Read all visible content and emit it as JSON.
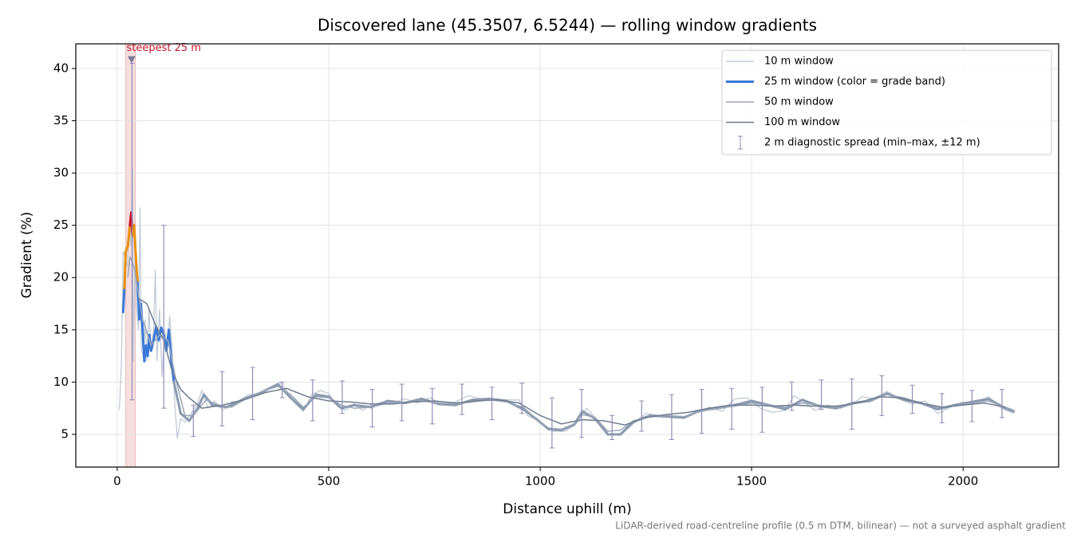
{
  "chart_data": {
    "type": "line",
    "title": "Discovered lane (45.3507, 6.5244) — rolling window gradients",
    "x_label": "Distance uphill (m)",
    "y_label": "Gradient (%)",
    "footnote": "LiDAR-derived road-centreline profile (0.5 m DTM, bilinear) — not a surveyed asphalt gradient",
    "xlim": [
      -98,
      2226
    ],
    "ylim": [
      1.87,
      42.36
    ],
    "xticks": [
      0,
      500,
      1000,
      1500,
      2000
    ],
    "yticks": [
      5,
      10,
      15,
      20,
      25,
      30,
      35,
      40
    ],
    "grid": true,
    "legend": "upper right",
    "highlight": {
      "x": [
        20,
        43
      ],
      "label": "steepest 25 m",
      "color": "#e8a0a0",
      "peak": {
        "x": 34,
        "y": 40.8
      }
    },
    "series": [
      {
        "name": "10 m window",
        "color": "#c0cad6",
        "x": [
          5,
          10,
          14,
          18,
          24,
          28,
          32,
          36,
          38,
          42,
          46,
          50,
          54,
          57,
          62,
          66,
          70,
          75,
          80,
          86,
          90,
          94,
          100,
          106,
          112,
          118,
          124,
          130,
          136,
          142,
          150,
          160,
          175,
          190,
          200,
          215,
          230,
          250,
          270,
          290,
          310,
          330,
          350,
          370,
          385,
          400,
          420,
          440,
          460,
          480,
          500,
          520,
          540,
          560,
          580,
          600,
          620,
          650,
          680,
          710,
          740,
          770,
          800,
          830,
          860,
          890,
          920,
          950,
          970,
          1000,
          1030,
          1060,
          1090,
          1110,
          1130,
          1160,
          1190,
          1220,
          1250,
          1280,
          1310,
          1340,
          1370,
          1400,
          1430,
          1460,
          1490,
          1520,
          1550,
          1580,
          1600,
          1620,
          1650,
          1680,
          1710,
          1740,
          1760,
          1790,
          1820,
          1850,
          1880,
          1910,
          1940,
          1970,
          2000,
          2030,
          2060,
          2090,
          2120
        ],
        "values": [
          7.3,
          12,
          22.5,
          22,
          21,
          25,
          23,
          30.5,
          12,
          22,
          17,
          15,
          26.7,
          13,
          12.5,
          16,
          12,
          17,
          13,
          15,
          20.7,
          12,
          17,
          10.5,
          15,
          13,
          16.3,
          13,
          8,
          4.6,
          6.5,
          6.2,
          7,
          8,
          9.2,
          7.5,
          8.2,
          7.3,
          8.1,
          8.2,
          8.8,
          8.8,
          9.2,
          9.6,
          10,
          9.2,
          8,
          7.2,
          8.8,
          9.2,
          8.9,
          7.7,
          7.3,
          7.9,
          7.3,
          7.8,
          8.0,
          8.0,
          8.4,
          8.0,
          8.5,
          7.8,
          8.1,
          8.7,
          8.4,
          8.4,
          8.3,
          8.3,
          6.8,
          6.2,
          5.3,
          5.3,
          6.2,
          7.5,
          6.6,
          5.0,
          4.9,
          6.0,
          7.0,
          6.8,
          6.7,
          6.7,
          7.1,
          7.6,
          7.2,
          8.4,
          8.5,
          7.5,
          7.1,
          7.3,
          8.7,
          8.2,
          7.3,
          7.8,
          7.5,
          7.9,
          8.6,
          8.4,
          9.1,
          8.4,
          7.9,
          8.2,
          7.0,
          7.6,
          8.1,
          7.9,
          8.6,
          7.5,
          7.0
        ]
      },
      {
        "name": "25 m window (color = grade band)",
        "color": "#3a78d8",
        "thresholds": [
          10,
          20,
          25
        ],
        "band_colors": [
          "#8a99ae",
          "#3a78d8",
          "#e8900c",
          "#c8102e"
        ],
        "x": [
          14,
          17,
          20,
          25,
          30,
          33,
          36,
          40,
          44,
          48,
          52,
          56,
          60,
          64,
          68,
          72,
          76,
          80,
          86,
          92,
          98,
          104,
          110,
          116,
          122,
          128,
          134,
          150,
          170,
          190,
          205,
          225,
          260,
          300,
          340,
          380,
          410,
          440,
          470,
          500,
          530,
          560,
          600,
          640,
          680,
          720,
          760,
          800,
          840,
          880,
          920,
          960,
          990,
          1020,
          1050,
          1080,
          1100,
          1130,
          1160,
          1190,
          1220,
          1260,
          1300,
          1340,
          1380,
          1420,
          1460,
          1500,
          1540,
          1580,
          1620,
          1660,
          1700,
          1740,
          1780,
          1820,
          1860,
          1900,
          1940,
          1980,
          2020,
          2060,
          2100,
          2120
        ],
        "values": [
          16.7,
          19,
          22.5,
          23,
          25,
          26.2,
          24,
          25,
          22,
          19.5,
          16,
          17.5,
          15,
          12,
          13.5,
          12.5,
          14.5,
          13,
          14,
          15.3,
          14,
          15.2,
          14.5,
          13,
          15,
          12,
          10,
          7,
          6.3,
          7.5,
          8.8,
          7.8,
          7.6,
          8.4,
          9,
          9.8,
          8.5,
          7.4,
          8.8,
          8.6,
          7.5,
          7.8,
          7.6,
          8.2,
          8.0,
          8.4,
          7.9,
          7.8,
          8.3,
          8.4,
          8.2,
          7.4,
          6.5,
          5.5,
          5.4,
          5.9,
          7.2,
          6.5,
          5.0,
          5.0,
          6.2,
          6.8,
          6.7,
          6.6,
          7.3,
          7.5,
          7.8,
          8.2,
          7.8,
          7.4,
          8.3,
          7.7,
          7.5,
          8.0,
          8.2,
          8.9,
          8.3,
          8.0,
          7.4,
          7.8,
          8.1,
          8.4,
          7.5,
          7.2
        ]
      },
      {
        "name": "50 m window",
        "color": "#9aa7b8",
        "x": [
          25,
          30,
          40,
          60,
          80,
          100,
          120,
          140,
          160,
          180,
          210,
          240,
          270,
          300,
          350,
          380,
          410,
          440,
          470,
          500,
          530,
          560,
          600,
          640,
          680,
          720,
          760,
          800,
          840,
          880,
          920,
          960,
          990,
          1020,
          1050,
          1080,
          1100,
          1130,
          1160,
          1190,
          1220,
          1260,
          1300,
          1340,
          1380,
          1420,
          1460,
          1500,
          1540,
          1580,
          1620,
          1660,
          1700,
          1740,
          1780,
          1820,
          1860,
          1900,
          1940,
          1980,
          2020,
          2060,
          2100,
          2120
        ],
        "values": [
          20,
          22,
          21,
          16,
          13.5,
          14.5,
          14,
          10,
          6.8,
          6.8,
          8.3,
          7.8,
          7.6,
          8.3,
          9.2,
          9.6,
          8.8,
          7.6,
          8.6,
          8.5,
          7.8,
          7.5,
          7.6,
          8.0,
          8.1,
          8.2,
          8.0,
          7.9,
          8.1,
          8.3,
          8.1,
          7.6,
          6.5,
          5.6,
          5.5,
          6.0,
          6.9,
          6.6,
          5.3,
          5.4,
          6.3,
          6.7,
          6.8,
          6.7,
          7.2,
          7.5,
          7.7,
          8.0,
          7.8,
          7.6,
          8.0,
          7.8,
          7.6,
          7.9,
          8.3,
          8.8,
          8.5,
          8.0,
          7.6,
          7.7,
          8.0,
          8.2,
          7.6,
          7.3
        ]
      },
      {
        "name": "100 m window",
        "color": "#6f7d8f",
        "x": [
          50,
          70,
          90,
          110,
          130,
          150,
          170,
          200,
          250,
          300,
          350,
          400,
          450,
          500,
          550,
          600,
          650,
          700,
          750,
          800,
          850,
          900,
          950,
          1000,
          1050,
          1100,
          1150,
          1200,
          1250,
          1300,
          1350,
          1400,
          1450,
          1500,
          1550,
          1600,
          1650,
          1700,
          1750,
          1800,
          1850,
          1900,
          1950,
          2000,
          2050,
          2100
        ],
        "values": [
          18,
          17.5,
          15.5,
          14,
          11,
          9.3,
          8.5,
          7.5,
          7.8,
          8.3,
          9,
          9.4,
          8.6,
          8.2,
          8.1,
          7.9,
          7.9,
          8.1,
          8.2,
          8.0,
          8.2,
          8.3,
          8.0,
          6.8,
          6.0,
          6.4,
          6.3,
          5.9,
          6.6,
          6.9,
          7.1,
          7.5,
          7.8,
          7.8,
          7.7,
          7.8,
          7.7,
          7.7,
          8.0,
          8.6,
          8.5,
          8.0,
          7.6,
          7.8,
          8.0,
          7.6
        ]
      },
      {
        "name": "2 m diagnostic spread (min–max, ±12 m)",
        "color": "#8f8cb8",
        "kind": "errorbar",
        "x": [
          35,
          110,
          180,
          248,
          320,
          390,
          462,
          532,
          603,
          673,
          745,
          815,
          886,
          957,
          1028,
          1098,
          1170,
          1240,
          1311,
          1382,
          1453,
          1525,
          1595,
          1665,
          1737,
          1808,
          1880,
          1950,
          2021,
          2092
        ],
        "lo": [
          8.3,
          7.5,
          4.8,
          5.8,
          6.4,
          8.5,
          6.3,
          7,
          5.7,
          6.3,
          6,
          6.9,
          6.4,
          7,
          3.7,
          4.7,
          4.5,
          5.3,
          4.5,
          5.1,
          5.5,
          5.2,
          7.3,
          7.4,
          5.5,
          6.8,
          7,
          6.1,
          6.2,
          6.6
        ],
        "hi": [
          40.5,
          25,
          7.8,
          11,
          11.4,
          10,
          10.2,
          10.1,
          9.3,
          9.8,
          9.4,
          9.8,
          9.5,
          9.9,
          8.5,
          9.3,
          6.8,
          8.2,
          8.8,
          9.3,
          9.4,
          9.5,
          10,
          10.2,
          10.3,
          10.6,
          9.7,
          8.9,
          9.2,
          9.3
        ]
      }
    ]
  }
}
